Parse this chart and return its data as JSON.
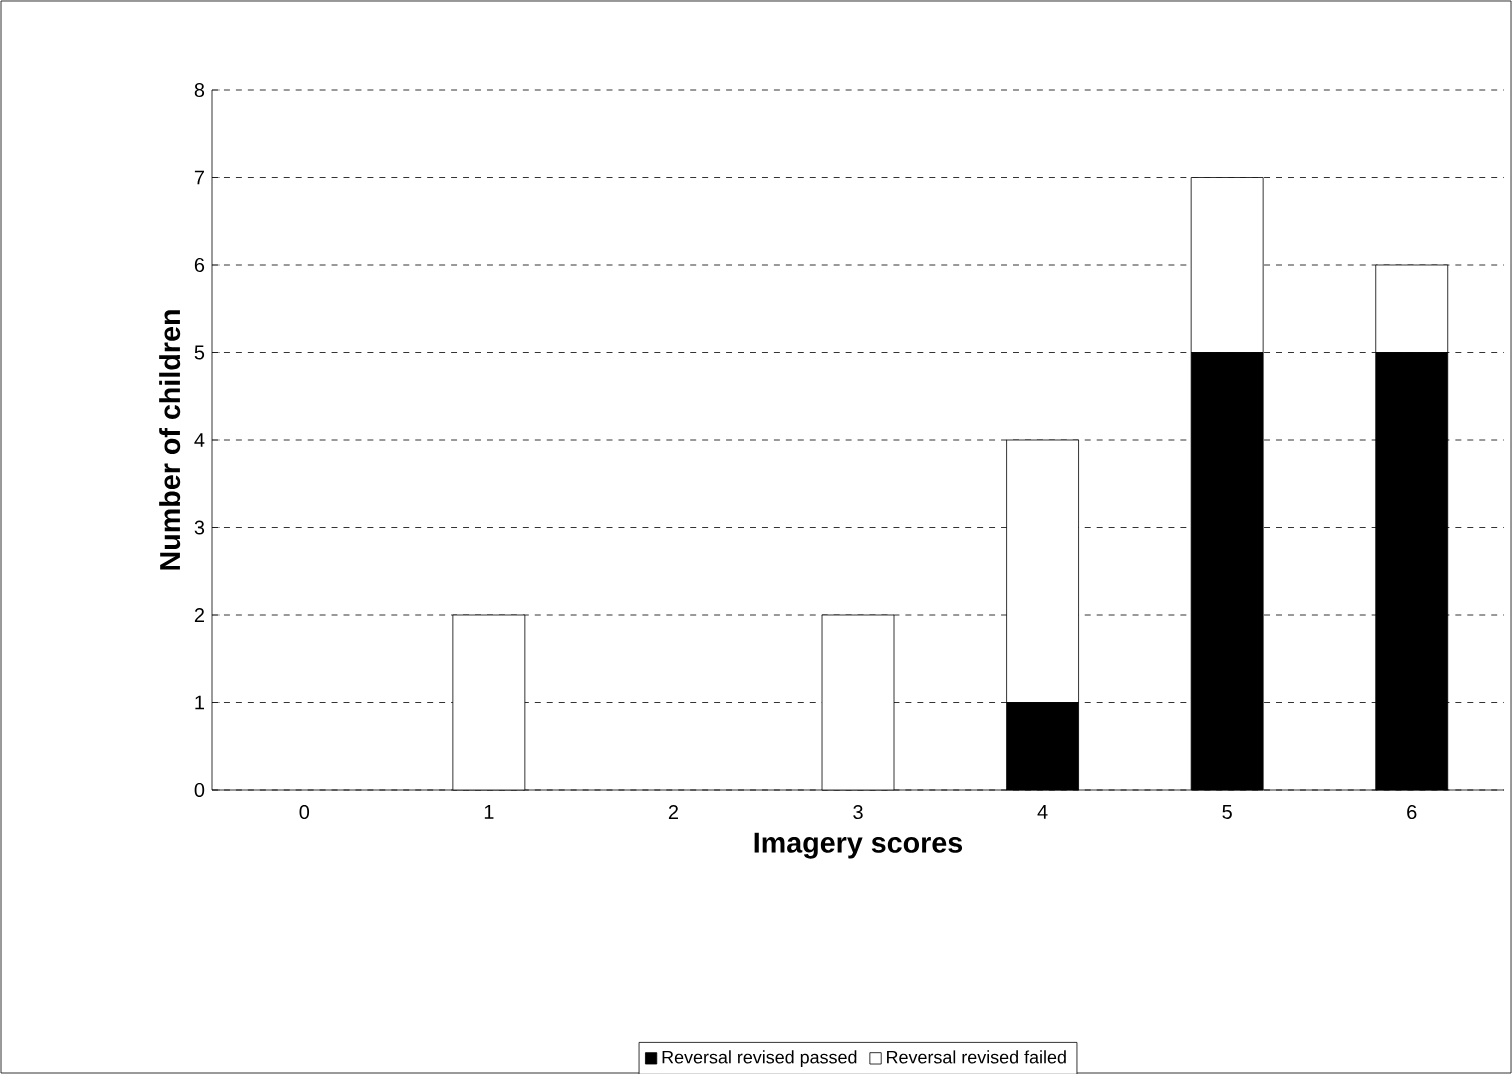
{
  "chart_data": {
    "type": "bar",
    "stacked": true,
    "xlabel": "Imagery scores",
    "ylabel": "Number of children",
    "categories": [
      "0",
      "1",
      "2",
      "3",
      "4",
      "5",
      "6"
    ],
    "series": [
      {
        "name": "Reversal revised passed",
        "color": "#000000",
        "values": [
          0,
          0,
          0,
          0,
          1,
          5,
          5
        ]
      },
      {
        "name": "Reversal revised failed",
        "color": "#ffffff",
        "values": [
          0,
          2,
          0,
          2,
          3,
          2,
          1
        ]
      }
    ],
    "ylim": [
      0,
      8
    ],
    "yticks": [
      0,
      1,
      2,
      3,
      4,
      5,
      6,
      7,
      8
    ],
    "grid": "y",
    "legend": "bottom"
  }
}
